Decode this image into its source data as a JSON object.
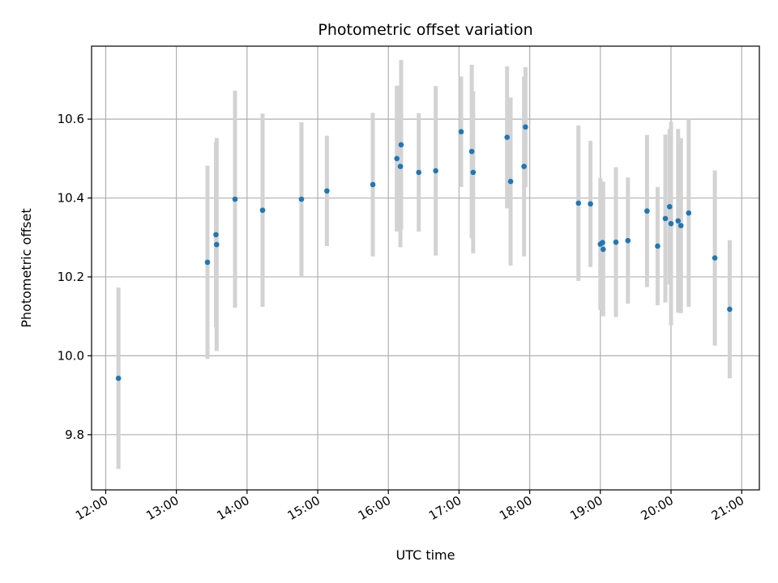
{
  "chart_data": {
    "type": "scatter",
    "title": "Photometric offset variation",
    "xlabel": "UTC time",
    "ylabel": "Photometric offset",
    "x_unit": "hours UTC",
    "xlim": [
      11.8,
      21.25
    ],
    "ylim": [
      9.66,
      10.785
    ],
    "xticks": [
      {
        "value": 12,
        "label": "12:00"
      },
      {
        "value": 13,
        "label": "13:00"
      },
      {
        "value": 14,
        "label": "14:00"
      },
      {
        "value": 15,
        "label": "15:00"
      },
      {
        "value": 16,
        "label": "16:00"
      },
      {
        "value": 17,
        "label": "17:00"
      },
      {
        "value": 18,
        "label": "18:00"
      },
      {
        "value": 19,
        "label": "19:00"
      },
      {
        "value": 20,
        "label": "20:00"
      },
      {
        "value": 21,
        "label": "21:00"
      }
    ],
    "yticks": [
      {
        "value": 9.8,
        "label": "9.8"
      },
      {
        "value": 10.0,
        "label": "10.0"
      },
      {
        "value": 10.2,
        "label": "10.2"
      },
      {
        "value": 10.4,
        "label": "10.4"
      },
      {
        "value": 10.6,
        "label": "10.6"
      }
    ],
    "grid": true,
    "point_color": "#1f77b4",
    "errorbar_color": "#d3d3d3",
    "points": [
      {
        "x": 12.18,
        "y": 9.943,
        "err": 0.23
      },
      {
        "x": 13.44,
        "y": 10.237,
        "err": 0.245
      },
      {
        "x": 13.56,
        "y": 10.307,
        "err": 0.235
      },
      {
        "x": 13.57,
        "y": 10.282,
        "err": 0.27
      },
      {
        "x": 13.83,
        "y": 10.397,
        "err": 0.275
      },
      {
        "x": 14.22,
        "y": 10.369,
        "err": 0.245
      },
      {
        "x": 14.77,
        "y": 10.397,
        "err": 0.195
      },
      {
        "x": 15.13,
        "y": 10.418,
        "err": 0.14
      },
      {
        "x": 15.78,
        "y": 10.434,
        "err": 0.182
      },
      {
        "x": 16.12,
        "y": 10.5,
        "err": 0.185
      },
      {
        "x": 16.18,
        "y": 10.535,
        "err": 0.215
      },
      {
        "x": 16.17,
        "y": 10.48,
        "err": 0.205
      },
      {
        "x": 16.43,
        "y": 10.465,
        "err": 0.15
      },
      {
        "x": 16.67,
        "y": 10.469,
        "err": 0.215
      },
      {
        "x": 17.03,
        "y": 10.568,
        "err": 0.14
      },
      {
        "x": 17.18,
        "y": 10.518,
        "err": 0.22
      },
      {
        "x": 17.2,
        "y": 10.465,
        "err": 0.205
      },
      {
        "x": 17.68,
        "y": 10.554,
        "err": 0.18
      },
      {
        "x": 17.73,
        "y": 10.442,
        "err": 0.213
      },
      {
        "x": 17.92,
        "y": 10.48,
        "err": 0.228
      },
      {
        "x": 17.94,
        "y": 10.58,
        "err": 0.152
      },
      {
        "x": 18.69,
        "y": 10.387,
        "err": 0.197
      },
      {
        "x": 18.86,
        "y": 10.385,
        "err": 0.16
      },
      {
        "x": 19.0,
        "y": 10.283,
        "err": 0.167
      },
      {
        "x": 19.03,
        "y": 10.287,
        "err": 0.155
      },
      {
        "x": 19.04,
        "y": 10.27,
        "err": 0.17
      },
      {
        "x": 19.22,
        "y": 10.288,
        "err": 0.19
      },
      {
        "x": 19.39,
        "y": 10.292,
        "err": 0.16
      },
      {
        "x": 19.66,
        "y": 10.367,
        "err": 0.193
      },
      {
        "x": 19.81,
        "y": 10.278,
        "err": 0.15
      },
      {
        "x": 19.92,
        "y": 10.348,
        "err": 0.213
      },
      {
        "x": 19.98,
        "y": 10.378,
        "err": 0.197
      },
      {
        "x": 20.0,
        "y": 10.335,
        "err": 0.258
      },
      {
        "x": 20.1,
        "y": 10.342,
        "err": 0.233
      },
      {
        "x": 20.14,
        "y": 10.33,
        "err": 0.222
      },
      {
        "x": 20.25,
        "y": 10.362,
        "err": 0.238
      },
      {
        "x": 20.62,
        "y": 10.248,
        "err": 0.222
      },
      {
        "x": 20.83,
        "y": 10.118,
        "err": 0.175
      }
    ]
  }
}
